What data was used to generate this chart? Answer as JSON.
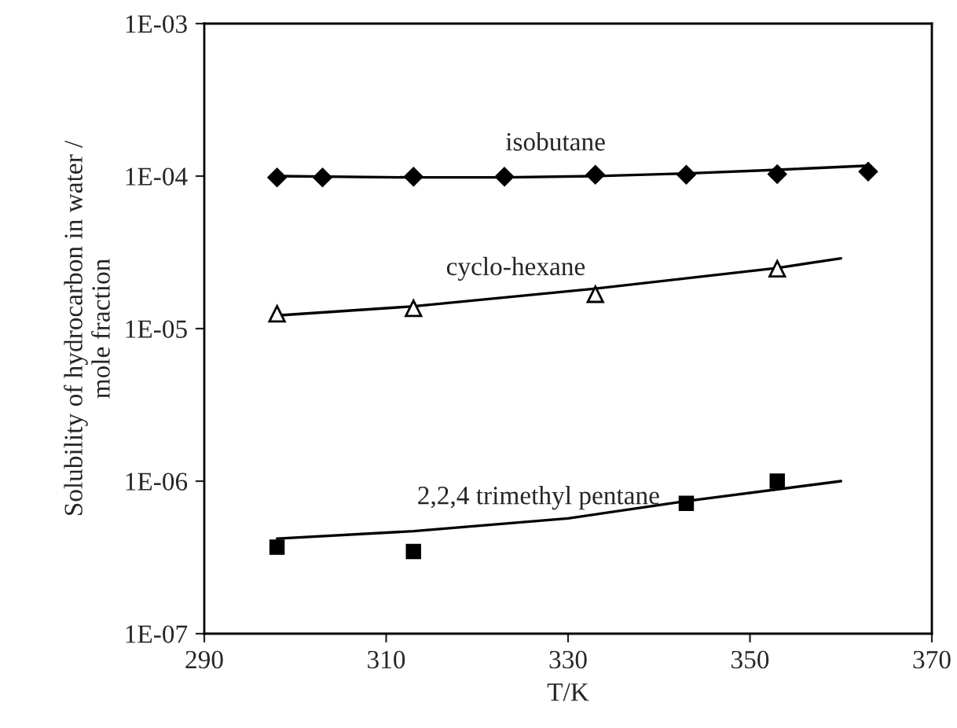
{
  "chart_data": {
    "type": "scatter",
    "xlabel": "T/K",
    "ylabel": "Solubility of hydrocarbon in water /\nmole fraction",
    "log": "y",
    "grid": false,
    "legend": false,
    "xlim": [
      290,
      370
    ],
    "xticks": [
      290,
      310,
      330,
      350,
      370
    ],
    "ylim": [
      1e-07,
      0.001
    ],
    "yticks": [
      {
        "value": 1e-07,
        "label": "1E-07"
      },
      {
        "value": 1e-06,
        "label": "1E-06"
      },
      {
        "value": 1e-05,
        "label": "1E-05"
      },
      {
        "value": 0.0001,
        "label": "1E-04"
      },
      {
        "value": 0.001,
        "label": "1E-03"
      }
    ],
    "series": [
      {
        "name": "isobutane",
        "type": "scatter",
        "marker": "diamond",
        "color": "#000000",
        "x": [
          298,
          303,
          313,
          323,
          333,
          343,
          353,
          363
        ],
        "values": [
          9.8e-05,
          9.8e-05,
          9.9e-05,
          9.9e-05,
          0.000102,
          0.000102,
          0.000103,
          0.000107
        ]
      },
      {
        "type": "line",
        "marker": "none",
        "color": "#000000",
        "x": [
          298,
          313,
          323,
          333,
          343,
          353,
          363
        ],
        "values": [
          0.0001,
          9.8e-05,
          9.8e-05,
          0.0001,
          0.000104,
          0.00011,
          0.000117
        ]
      },
      {
        "name": "cyclo-hexane",
        "type": "scatter",
        "marker": "triangle",
        "color": "#ffffff",
        "x": [
          298,
          313,
          333,
          353
        ],
        "values": [
          1.25e-05,
          1.36e-05,
          1.68e-05,
          2.47e-05
        ]
      },
      {
        "type": "line",
        "marker": "none",
        "color": "#000000",
        "x": [
          298,
          313,
          333,
          353,
          360
        ],
        "values": [
          1.22e-05,
          1.4e-05,
          1.83e-05,
          2.5e-05,
          2.89e-05
        ]
      },
      {
        "name": "2,2,4 trimethyl pentane",
        "type": "scatter",
        "marker": "square",
        "color": "#000000",
        "x": [
          298,
          313,
          343,
          353
        ],
        "values": [
          3.69e-07,
          3.46e-07,
          7.15e-07,
          1e-06
        ]
      },
      {
        "type": "line",
        "marker": "none",
        "color": "#000000",
        "x": [
          298,
          313,
          330,
          343,
          360
        ],
        "values": [
          4.2e-07,
          4.7e-07,
          5.7e-07,
          7.4e-07,
          1e-06
        ]
      }
    ]
  }
}
